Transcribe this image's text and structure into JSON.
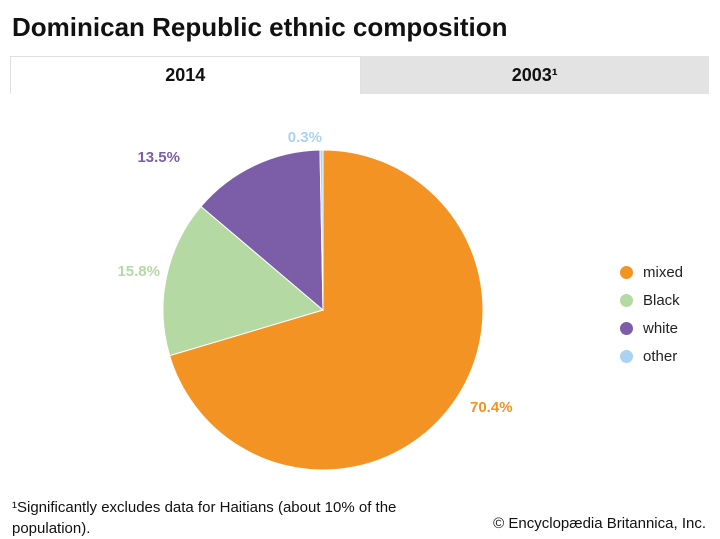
{
  "title": "Dominican Republic ethnic composition",
  "tabs": [
    {
      "label": "2014",
      "active": true
    },
    {
      "label": "2003¹",
      "active": false
    }
  ],
  "chart_data": {
    "type": "pie",
    "categories": [
      "mixed",
      "Black",
      "white",
      "other"
    ],
    "values": [
      70.4,
      15.8,
      13.5,
      0.3
    ],
    "labels": [
      "70.4%",
      "15.8%",
      "13.5%",
      "0.3%"
    ],
    "colors": [
      "#f39323",
      "#b5d9a3",
      "#7b5ea7",
      "#a9d3ee"
    ],
    "legend_position": "right"
  },
  "footnote": "¹Significantly excludes data for Haitians (about 10% of the population).",
  "credit": "© Encyclopædia Britannica, Inc."
}
